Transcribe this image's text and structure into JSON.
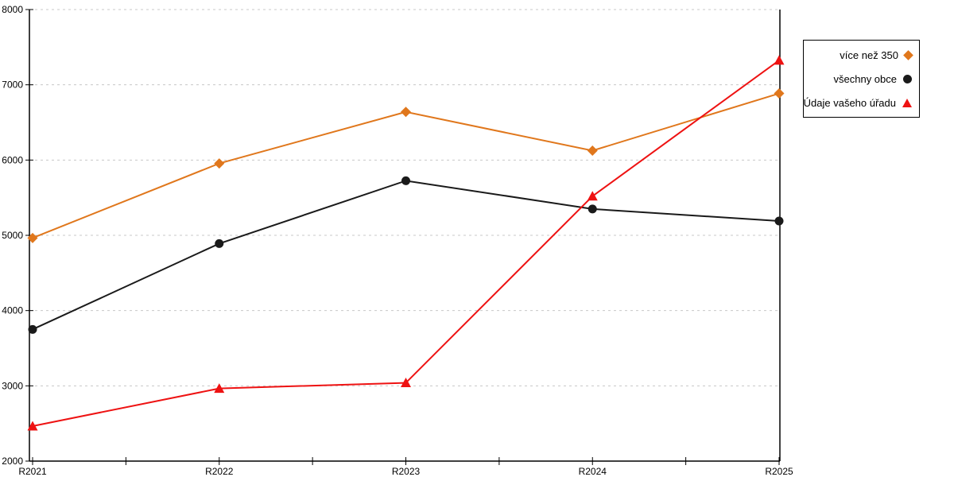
{
  "chart_data": {
    "type": "line",
    "title": "",
    "xlabel": "",
    "ylabel": "",
    "categories": [
      "R2021",
      "R2022",
      "R2023",
      "R2024",
      "R2025"
    ],
    "series": [
      {
        "name": "více než 350",
        "marker": "diamond",
        "color": "#E0771C",
        "values": [
          4965,
          5955,
          6640,
          6125,
          6885
        ]
      },
      {
        "name": "všechny obce",
        "marker": "circle",
        "color": "#1A1A1A",
        "values": [
          3750,
          4890,
          5725,
          5350,
          5190
        ]
      },
      {
        "name": "Údaje vašeho úřadu",
        "marker": "triangle",
        "color": "#EE1212",
        "values": [
          2465,
          2965,
          3040,
          5520,
          7325
        ]
      }
    ],
    "ylim": [
      2000,
      8000
    ],
    "yticks": [
      2000,
      3000,
      4000,
      5000,
      6000,
      7000,
      8000
    ],
    "grid": "horizontal-dashed",
    "gridline_color": "#C8C8C8",
    "axis_color": "#000000",
    "legend_position": "outside-top-right"
  }
}
